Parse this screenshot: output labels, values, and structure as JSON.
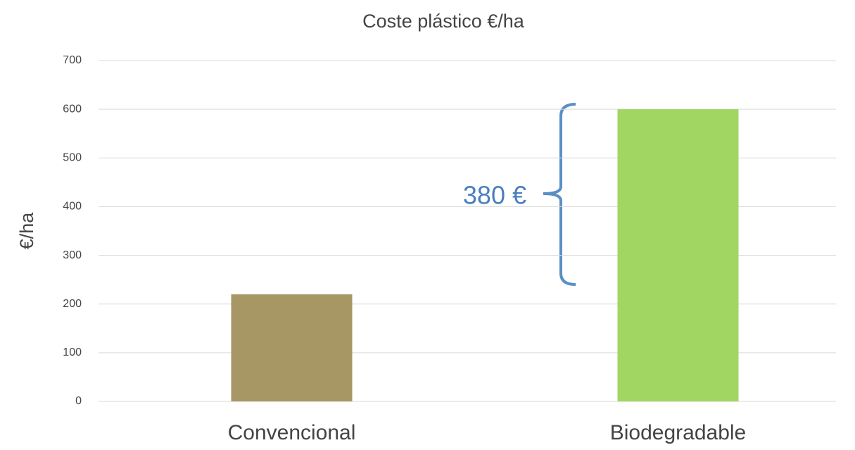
{
  "chart_data": {
    "type": "bar",
    "title": "Coste plástico €/ha",
    "y_label": "€/ha",
    "categories": [
      "Convencional",
      "Biodegradable"
    ],
    "values": [
      220,
      600
    ],
    "colors": [
      "#a69764",
      "#a1d662"
    ],
    "ylim": [
      0,
      700
    ],
    "yticks": [
      0,
      100,
      200,
      300,
      400,
      500,
      600,
      700
    ],
    "grid": true,
    "annotation": "380 €"
  }
}
